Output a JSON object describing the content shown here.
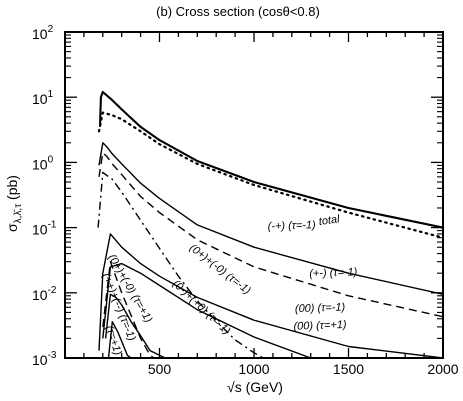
{
  "chart_data": {
    "type": "line",
    "title": "(b) Cross section  (cosθ<0.8)",
    "xlabel": "√s (GeV)",
    "ylabel_main": "σ",
    "ylabel_sub": "λ,λ̄,τ",
    "ylabel_unit": " (pb)",
    "xlim": [
      0,
      2000
    ],
    "ylim": [
      0.001,
      100
    ],
    "yscale": "log",
    "grid": false,
    "legend": "none",
    "x_ticks": [
      {
        "value": 500,
        "label": "500"
      },
      {
        "value": 1000,
        "label": "1000"
      },
      {
        "value": 1500,
        "label": "1500"
      },
      {
        "value": 2000,
        "label": "2000"
      }
    ],
    "y_ticks": [
      {
        "exp": -3,
        "base": "10",
        "sup": "-3"
      },
      {
        "exp": -2,
        "base": "10",
        "sup": "-2"
      },
      {
        "exp": -1,
        "base": "10",
        "sup": "-1"
      },
      {
        "exp": 0,
        "base": "10",
        "sup": "0"
      },
      {
        "exp": 1,
        "base": "10",
        "sup": "1"
      },
      {
        "exp": 2,
        "base": "10",
        "sup": "2"
      }
    ],
    "series": [
      {
        "style": "solid",
        "width": 2.1,
        "x": [
          185,
          190,
          200,
          250,
          300,
          400,
          500,
          700,
          1000,
          1500,
          2000
        ],
        "y": [
          3.5,
          10.0,
          12.0,
          9.0,
          6.5,
          3.5,
          2.2,
          1.05,
          0.5,
          0.2,
          0.1
        ]
      },
      {
        "style": "dotted",
        "width": 2.2,
        "x": [
          180,
          200,
          250,
          300,
          400,
          500,
          700,
          1000,
          1500,
          2000
        ],
        "y": [
          3.0,
          5.8,
          5.3,
          4.6,
          3.0,
          1.9,
          0.95,
          0.45,
          0.17,
          0.07
        ]
      },
      {
        "style": "solid",
        "width": 1.4,
        "x": [
          180,
          200,
          220,
          250,
          300,
          400,
          500,
          700,
          1000,
          1500,
          2000
        ],
        "y": [
          0.9,
          2.0,
          1.75,
          1.35,
          0.95,
          0.48,
          0.28,
          0.11,
          0.05,
          0.02,
          0.0095
        ]
      },
      {
        "style": "dashed",
        "width": 1.4,
        "x": [
          180,
          200,
          220,
          250,
          300,
          400,
          500,
          700,
          1000,
          1500,
          2000
        ],
        "y": [
          0.6,
          1.4,
          1.25,
          0.95,
          0.65,
          0.3,
          0.17,
          0.065,
          0.025,
          0.009,
          0.0043
        ]
      },
      {
        "style": "dashdot",
        "width": 1.4,
        "x": [
          175,
          200,
          250,
          300,
          400,
          500,
          600,
          700,
          800,
          900,
          1000,
          1050
        ],
        "y": [
          0.1,
          0.7,
          0.55,
          0.35,
          0.13,
          0.048,
          0.018,
          0.0075,
          0.0037,
          0.0019,
          0.0012,
          0.001
        ]
      },
      {
        "style": "solid",
        "width": 1.4,
        "x": [
          180,
          200,
          240,
          300,
          400,
          500,
          700,
          1000,
          1500,
          2000
        ],
        "y": [
          0.0013,
          0.02,
          0.08,
          0.05,
          0.028,
          0.018,
          0.0085,
          0.0038,
          0.0015,
          0.001
        ]
      },
      {
        "style": "solid",
        "width": 1.4,
        "x": [
          200,
          240,
          300,
          400,
          500,
          700,
          1000,
          1300
        ],
        "y": [
          0.002,
          0.025,
          0.028,
          0.02,
          0.013,
          0.0055,
          0.0021,
          0.001
        ]
      },
      {
        "style": "dashed",
        "width": 1.4,
        "x": [
          200,
          240,
          300,
          350,
          400,
          450,
          470
        ],
        "y": [
          0.003,
          0.03,
          0.01,
          0.0045,
          0.002,
          0.0011,
          0.001
        ]
      },
      {
        "style": "solid",
        "width": 1.4,
        "x": [
          215,
          240,
          270,
          300,
          350,
          400,
          450,
          500,
          530
        ],
        "y": [
          0.002,
          0.0095,
          0.0085,
          0.0065,
          0.0036,
          0.0022,
          0.0013,
          0.0011,
          0.001
        ]
      },
      {
        "style": "solid",
        "width": 1.4,
        "x": [
          230,
          250,
          280,
          300,
          330,
          350
        ],
        "y": [
          0.001,
          0.0036,
          0.0025,
          0.0018,
          0.0011,
          0.001
        ]
      }
    ],
    "annotations": [
      {
        "text": "total",
        "x": 1400,
        "y": 0.115,
        "rotate": -8
      },
      {
        "text": "(-+)  (τ=-1)",
        "x": 1200,
        "y": 0.095,
        "rotate": -2
      },
      {
        "text": "(+-)  (τ=-1)",
        "x": 1420,
        "y": 0.018,
        "rotate": -2
      },
      {
        "text": "(0+)+(-0)  (τ=-1)",
        "x": 810,
        "y": 0.021,
        "rotate": 38
      },
      {
        "text": "(00)   (τ=-1)",
        "x": 1350,
        "y": 0.0052,
        "rotate": -2
      },
      {
        "text": "(00)   (τ=+1)",
        "x": 1350,
        "y": 0.0028,
        "rotate": -2
      },
      {
        "text": "(0-)+(+0)  (τ=-1)",
        "x": 710,
        "y": 0.0055,
        "rotate": 43
      },
      {
        "text": "(0+)+(-0) (τ=+1)",
        "x": 330,
        "y": 0.011,
        "rotate": 60
      },
      {
        "text": "(++)+(--)  (τ=-1)",
        "x": 270,
        "y": 0.0058,
        "rotate": 68
      },
      {
        "text": "(τ=+1)",
        "x": 240,
        "y": 0.0018,
        "rotate": 72
      }
    ]
  }
}
